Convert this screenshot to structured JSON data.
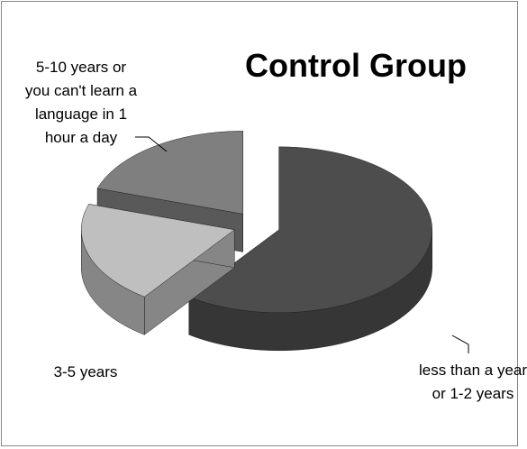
{
  "chart_data": {
    "type": "pie3d",
    "title": "Control Group",
    "categories": [
      "less than a year or 1-2 years",
      "3-5 years",
      "5-10 years or you can't learn a language in 1 hour a day"
    ],
    "values": [
      60,
      20,
      20
    ],
    "colors": [
      "#4d4d4d",
      "#bfbfbf",
      "#7f7f7f"
    ]
  }
}
